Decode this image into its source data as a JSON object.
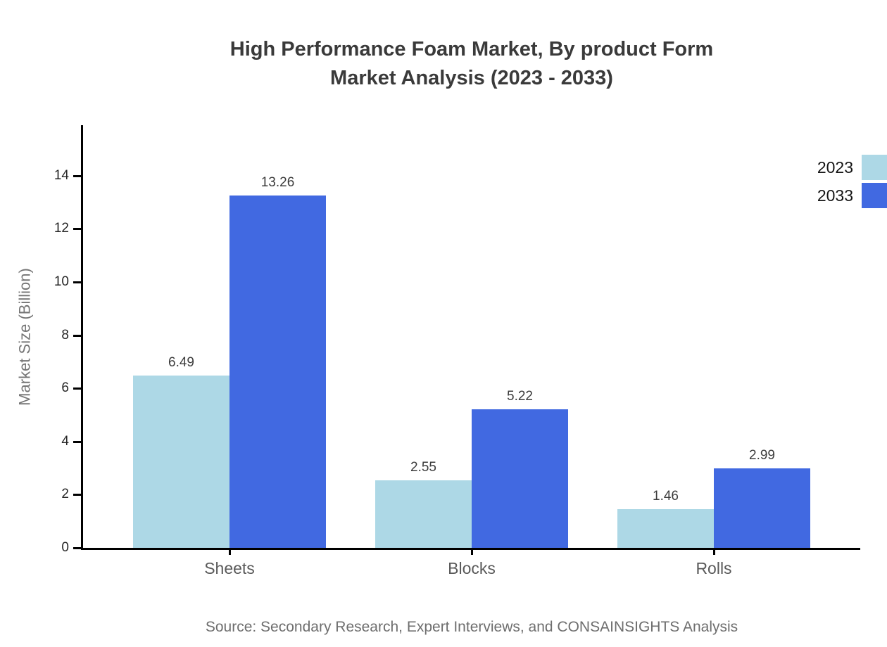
{
  "title": {
    "line1": "High Performance Foam Market, By product Form",
    "line2": "Market Analysis (2023 - 2033)"
  },
  "source": "Source: Secondary Research, Expert Interviews, and CONSAINSIGHTS Analysis",
  "chart_data": {
    "type": "bar",
    "title": "High Performance Foam Market, By product Form Market Analysis (2023 - 2033)",
    "categories": [
      "Sheets",
      "Blocks",
      "Rolls"
    ],
    "series": [
      {
        "name": "2023",
        "color": "#ADD8E6",
        "values": [
          6.49,
          2.55,
          1.46
        ]
      },
      {
        "name": "2033",
        "color": "#4169E1",
        "values": [
          13.26,
          5.22,
          2.99
        ]
      }
    ],
    "xlabel": "",
    "ylabel": "Market Size (Billion)",
    "yticks": [
      0,
      2,
      4,
      6,
      8,
      10,
      12,
      14
    ],
    "ylim": [
      0,
      15.9
    ],
    "grid": false,
    "legend_position": "top-right",
    "value_labels": true,
    "value_label_format": "0.00",
    "background_color": "#ffffff",
    "axis_color": "#000000"
  }
}
